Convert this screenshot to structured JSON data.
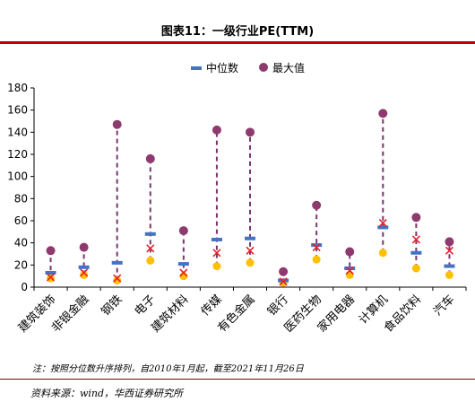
{
  "title": "图表11：一级行业PE(TTM)",
  "note": "注：按照分位数升序排列，自2010年1月起，截至2021年11月26日",
  "source": "资料来源：wind，华西证券研究所",
  "colors": {
    "median": "#4472c4",
    "max": "#8e3a6e",
    "min": "#ffc000",
    "current": "#e8202a",
    "range_line": "#7a3570",
    "title_rule": "#c00000"
  },
  "chart_data": {
    "type": "scatter",
    "title": "",
    "xlabel": "",
    "ylabel": "",
    "ylim": [
      0,
      180
    ],
    "yticks": [
      0,
      20,
      40,
      60,
      80,
      100,
      120,
      140,
      160,
      180
    ],
    "legend_position": "top",
    "categories": [
      "建筑装饰",
      "非银金融",
      "钢铁",
      "电子",
      "建筑材料",
      "传媒",
      "有色金属",
      "银行",
      "医药生物",
      "家用电器",
      "计算机",
      "食品饮料",
      "汽车"
    ],
    "series": [
      {
        "name": "中位数",
        "marker": "dash",
        "values": [
          13,
          18,
          22,
          48,
          21,
          43,
          44,
          6,
          38,
          17,
          54,
          31,
          19
        ]
      },
      {
        "name": "最大值",
        "marker": "circle",
        "values": [
          33,
          36,
          147,
          116,
          51,
          142,
          140,
          14,
          74,
          32,
          157,
          63,
          41
        ]
      },
      {
        "marker": "dot",
        "values": [
          8,
          11,
          6,
          24,
          10,
          19,
          22,
          4,
          25,
          11,
          31,
          17,
          11
        ]
      },
      {
        "marker": "x",
        "values": [
          9,
          13,
          8,
          35,
          13,
          31,
          33,
          5,
          36,
          15,
          58,
          43,
          33
        ]
      }
    ]
  }
}
